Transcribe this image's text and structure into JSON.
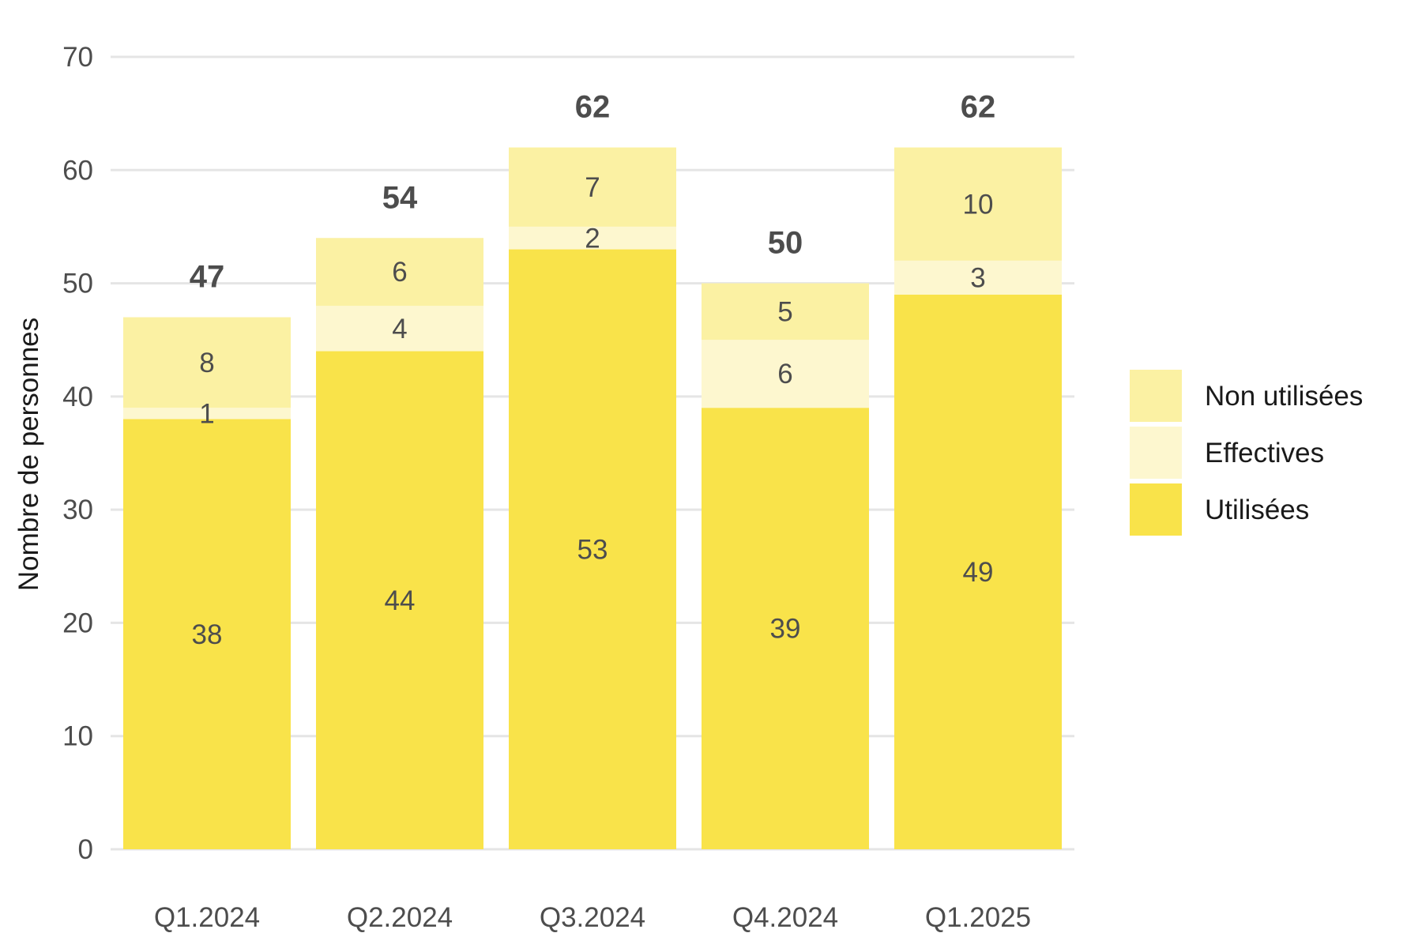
{
  "chart_data": {
    "type": "bar",
    "stacked": true,
    "categories": [
      "Q1.2024",
      "Q2.2024",
      "Q3.2024",
      "Q4.2024",
      "Q1.2025"
    ],
    "series": [
      {
        "name": "Utilisées",
        "values": [
          38,
          44,
          53,
          39,
          49
        ],
        "color": "#f9e34a"
      },
      {
        "name": "Effectives",
        "values": [
          1,
          4,
          2,
          6,
          3
        ],
        "color": "#fdf7cf"
      },
      {
        "name": "Non utilisées",
        "values": [
          8,
          6,
          7,
          5,
          10
        ],
        "color": "#fbf1a3"
      }
    ],
    "totals": [
      47,
      54,
      62,
      50,
      62
    ],
    "legend_order": [
      "Non utilisées",
      "Effectives",
      "Utilisées"
    ],
    "title": "",
    "xlabel": "",
    "ylabel": "Nombre de personnes",
    "ylim": [
      0,
      70
    ],
    "yticks": [
      0,
      10,
      20,
      30,
      40,
      50,
      60,
      70
    ],
    "grid": true,
    "legend_position": "right"
  }
}
